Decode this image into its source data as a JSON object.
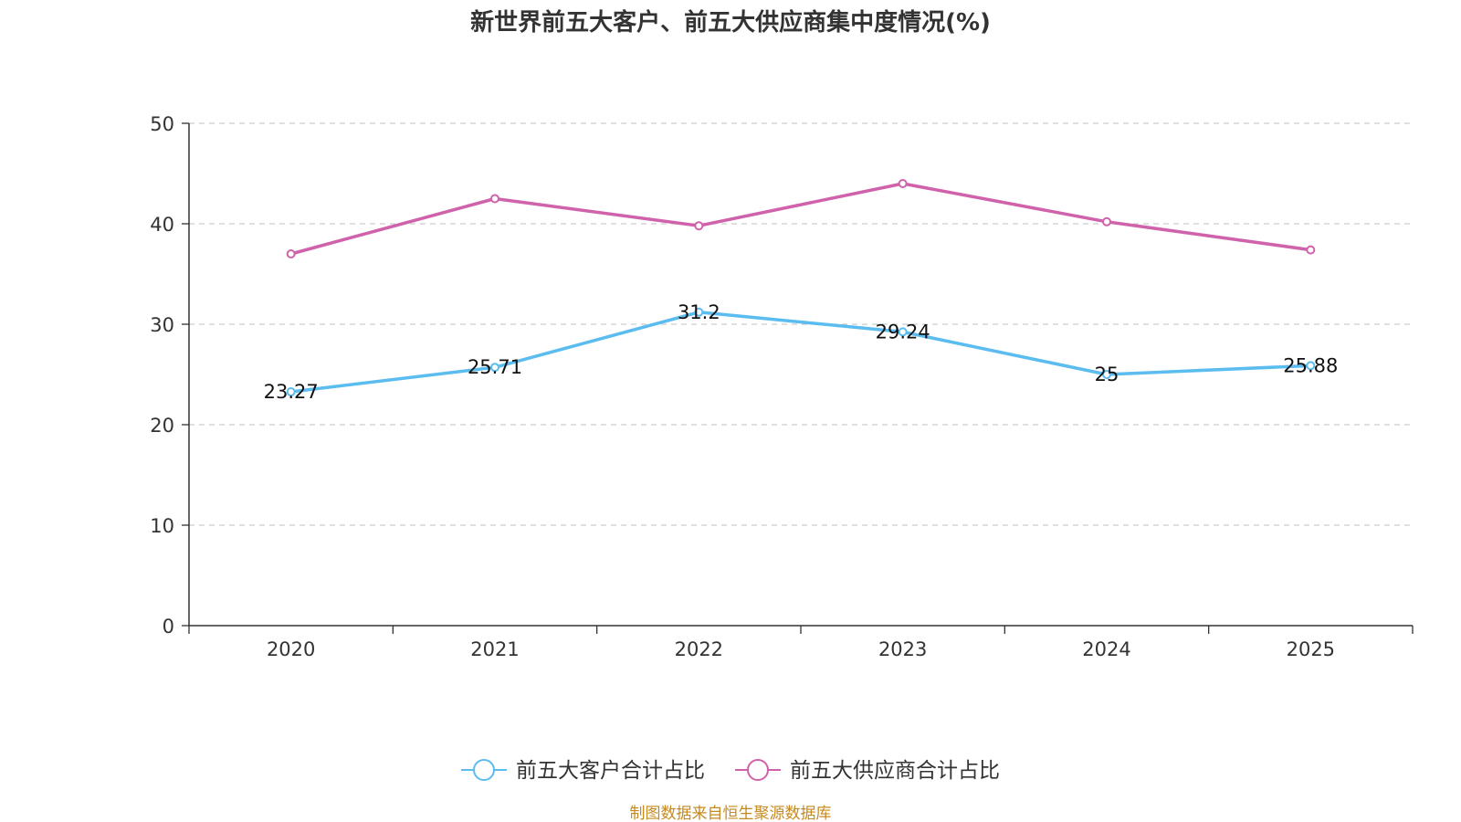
{
  "chart_data": {
    "type": "line",
    "title": "新世界前五大客户、前五大供应商集中度情况(%)",
    "categories": [
      "2020",
      "2021",
      "2022",
      "2023",
      "2024",
      "2025"
    ],
    "ylim": [
      0,
      50
    ],
    "yticks": [
      "0",
      "10",
      "20",
      "30",
      "40",
      "50"
    ],
    "grid": true,
    "legend_position": "bottom-center",
    "series": [
      {
        "name": "前五大客户合计占比",
        "color": "#5bbcf0",
        "values": [
          23.27,
          25.71,
          31.2,
          29.24,
          25,
          25.88
        ],
        "labels": [
          "23.27",
          "25.71",
          "31.2",
          "29.24",
          "25",
          "25.88"
        ]
      },
      {
        "name": "前五大供应商合计占比",
        "color": "#d062ab",
        "values": [
          37.0,
          42.5,
          39.8,
          44.0,
          40.2,
          37.4
        ],
        "labels": null
      }
    ]
  },
  "footer": {
    "source": "制图数据来自恒生聚源数据库",
    "source_color": "#c58a1f"
  }
}
